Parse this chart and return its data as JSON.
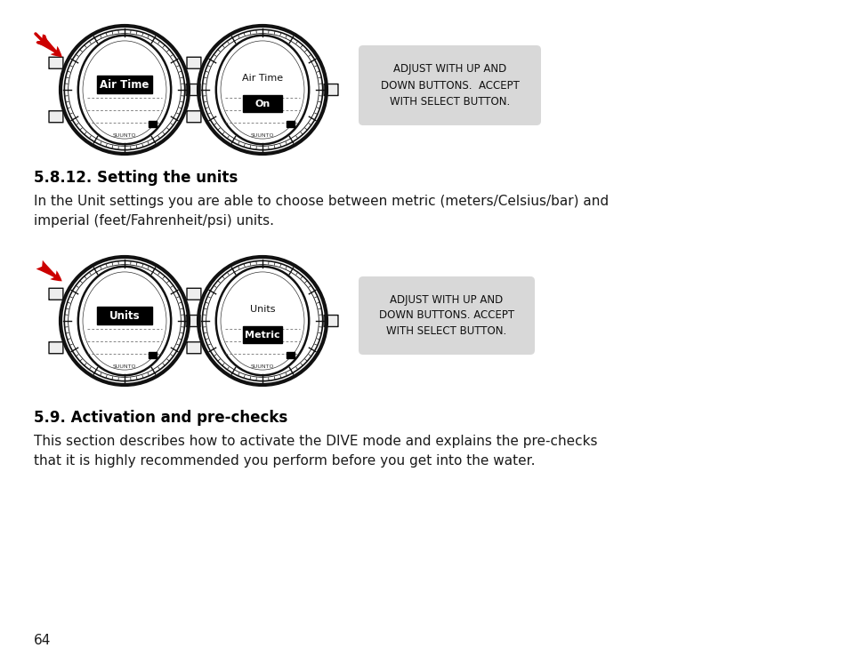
{
  "bg_color": "#ffffff",
  "page_number": "64",
  "section1_heading": "5.8.12. Setting the units",
  "section1_body": "In the Unit settings you are able to choose between metric (meters/Celsius/bar) and\nimperial (feet/Fahrenheit/psi) units.",
  "section2_heading": "5.9. Activation and pre-checks",
  "section2_body": "This section describes how to activate the DIVE mode and explains the pre-checks\nthat it is highly recommended you perform before you get into the water.",
  "callout1": "ADJUST WITH UP AND\nDOWN BUTTONS.  ACCEPT\nWITH SELECT BUTTON.",
  "callout2": "ADJUST WITH UP AND\nDOWN BUTTONS. ACCEPT\nWITH SELECT BUTTON.",
  "watch1_label": "Air Time",
  "watch2_label1": "Air Time",
  "watch2_label2": "On",
  "watch3_label": "Units",
  "watch4_label1": "Units",
  "watch4_label2": "Metric",
  "suinto_text": "SUUNTO",
  "text_color": "#1a1a1a",
  "heading_color": "#000000",
  "callout_bg": "#d8d8d8",
  "watch_outline": "#000000",
  "label_bg": "#000000",
  "label_fg": "#ffffff",
  "arrow_color": "#cc0000"
}
